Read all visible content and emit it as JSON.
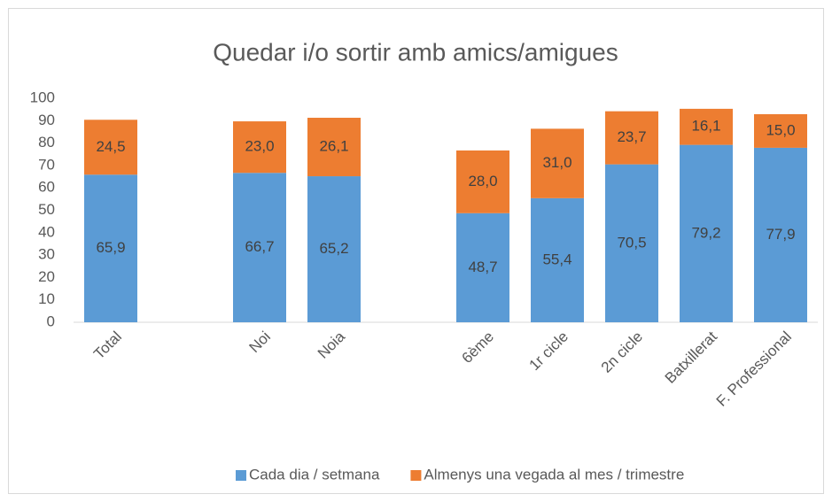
{
  "chart_data": {
    "type": "stacked_bar",
    "title": "Quedar i/o sortir amb amics/amigues",
    "categories": [
      "Total",
      null,
      "Noi",
      "Noia",
      null,
      "6ème",
      "1r cicle",
      "2n cicle",
      "Batxillerat",
      "F. Professional"
    ],
    "series": [
      {
        "name": "Cada dia / setmana",
        "color": "#5b9bd5",
        "values": [
          65.9,
          null,
          66.7,
          65.2,
          null,
          48.7,
          55.4,
          70.5,
          79.2,
          77.9
        ],
        "value_labels": [
          "65,9",
          null,
          "66,7",
          "65,2",
          null,
          "48,7",
          "55,4",
          "70,5",
          "79,2",
          "77,9"
        ]
      },
      {
        "name": "Almenys una vegada al mes / trimestre",
        "color": "#ed7d31",
        "values": [
          24.5,
          null,
          23.0,
          26.1,
          null,
          28.0,
          31.0,
          23.7,
          16.1,
          15.0
        ],
        "value_labels": [
          "24,5",
          null,
          "23,0",
          "26,1",
          null,
          "28,0",
          "31,0",
          "23,7",
          "16,1",
          "15,0"
        ]
      }
    ],
    "ylim": [
      0,
      100
    ],
    "yticks": [
      0,
      10,
      20,
      30,
      40,
      50,
      60,
      70,
      80,
      90,
      100
    ],
    "grid": false,
    "legend": "bottom"
  }
}
